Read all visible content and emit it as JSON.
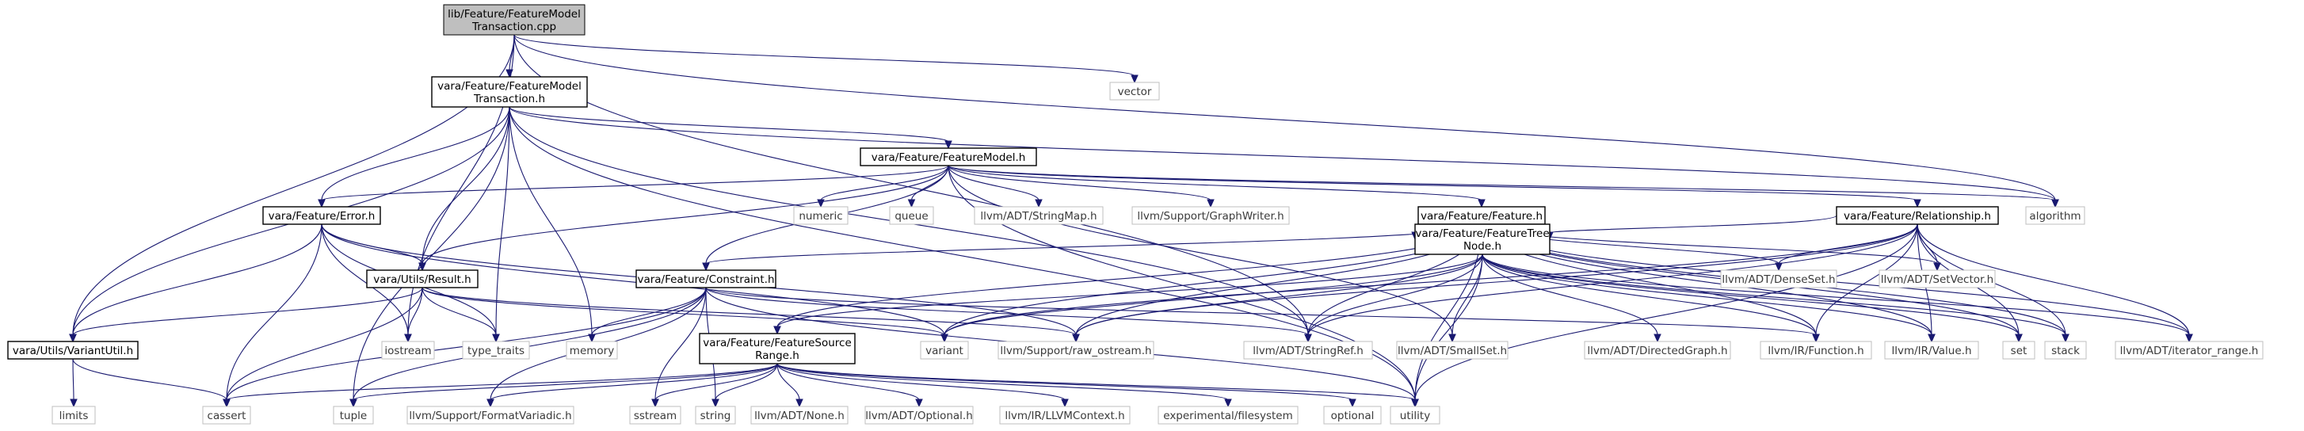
{
  "nodes": [
    {
      "id": "root",
      "lines": [
        "lib/Feature/FeatureModel",
        "Transaction.cpp"
      ],
      "kind": "gray"
    },
    {
      "id": "fmt_h",
      "lines": [
        "vara/Feature/FeatureModel",
        "Transaction.h"
      ],
      "kind": "main"
    },
    {
      "id": "vector",
      "lines": [
        "vector"
      ],
      "kind": "sys"
    },
    {
      "id": "fm_h",
      "lines": [
        "vara/Feature/FeatureModel.h"
      ],
      "kind": "main"
    },
    {
      "id": "error_h",
      "lines": [
        "vara/Feature/Error.h"
      ],
      "kind": "main"
    },
    {
      "id": "numeric",
      "lines": [
        "numeric"
      ],
      "kind": "sys"
    },
    {
      "id": "queue",
      "lines": [
        "queue"
      ],
      "kind": "sys"
    },
    {
      "id": "stringmap",
      "lines": [
        "llvm/ADT/StringMap.h"
      ],
      "kind": "sys"
    },
    {
      "id": "graphwriter",
      "lines": [
        "llvm/Support/GraphWriter.h"
      ],
      "kind": "sys"
    },
    {
      "id": "feature_h",
      "lines": [
        "vara/Feature/Feature.h"
      ],
      "kind": "main"
    },
    {
      "id": "relationship_h",
      "lines": [
        "vara/Feature/Relationship.h"
      ],
      "kind": "main"
    },
    {
      "id": "algorithm",
      "lines": [
        "algorithm"
      ],
      "kind": "sys"
    },
    {
      "id": "result_h",
      "lines": [
        "vara/Utils/Result.h"
      ],
      "kind": "main"
    },
    {
      "id": "constraint_h",
      "lines": [
        "vara/Feature/Constraint.h"
      ],
      "kind": "main"
    },
    {
      "id": "ftn_h",
      "lines": [
        "vara/Feature/FeatureTree",
        "Node.h"
      ],
      "kind": "main"
    },
    {
      "id": "denseset",
      "lines": [
        "llvm/ADT/DenseSet.h"
      ],
      "kind": "sys"
    },
    {
      "id": "setvector",
      "lines": [
        "llvm/ADT/SetVector.h"
      ],
      "kind": "sys"
    },
    {
      "id": "variantutil_h",
      "lines": [
        "vara/Utils/VariantUtil.h"
      ],
      "kind": "main"
    },
    {
      "id": "iostream",
      "lines": [
        "iostream"
      ],
      "kind": "sys"
    },
    {
      "id": "type_traits",
      "lines": [
        "type_traits"
      ],
      "kind": "sys"
    },
    {
      "id": "memory",
      "lines": [
        "memory"
      ],
      "kind": "sys"
    },
    {
      "id": "variant",
      "lines": [
        "variant"
      ],
      "kind": "sys"
    },
    {
      "id": "raw_ostream",
      "lines": [
        "llvm/Support/raw_ostream.h"
      ],
      "kind": "sys"
    },
    {
      "id": "stringref",
      "lines": [
        "llvm/ADT/StringRef.h"
      ],
      "kind": "sys"
    },
    {
      "id": "smallset",
      "lines": [
        "llvm/ADT/SmallSet.h"
      ],
      "kind": "sys"
    },
    {
      "id": "directedgraph",
      "lines": [
        "llvm/ADT/DirectedGraph.h"
      ],
      "kind": "sys"
    },
    {
      "id": "irfunction",
      "lines": [
        "llvm/IR/Function.h"
      ],
      "kind": "sys"
    },
    {
      "id": "irvalue",
      "lines": [
        "llvm/IR/Value.h"
      ],
      "kind": "sys"
    },
    {
      "id": "set",
      "lines": [
        "set"
      ],
      "kind": "sys"
    },
    {
      "id": "stack",
      "lines": [
        "stack"
      ],
      "kind": "sys"
    },
    {
      "id": "iterator_range",
      "lines": [
        "llvm/ADT/iterator_range.h"
      ],
      "kind": "sys"
    },
    {
      "id": "fsr_h",
      "lines": [
        "vara/Feature/FeatureSource",
        "Range.h"
      ],
      "kind": "main"
    },
    {
      "id": "limits",
      "lines": [
        "limits"
      ],
      "kind": "sys"
    },
    {
      "id": "cassert",
      "lines": [
        "cassert"
      ],
      "kind": "sys"
    },
    {
      "id": "tuple",
      "lines": [
        "tuple"
      ],
      "kind": "sys"
    },
    {
      "id": "formatvariadic",
      "lines": [
        "llvm/Support/FormatVariadic.h"
      ],
      "kind": "sys"
    },
    {
      "id": "sstream",
      "lines": [
        "sstream"
      ],
      "kind": "sys"
    },
    {
      "id": "string",
      "lines": [
        "string"
      ],
      "kind": "sys"
    },
    {
      "id": "none",
      "lines": [
        "llvm/ADT/None.h"
      ],
      "kind": "sys"
    },
    {
      "id": "optional_h",
      "lines": [
        "llvm/ADT/Optional.h"
      ],
      "kind": "sys"
    },
    {
      "id": "llvmcontext",
      "lines": [
        "llvm/IR/LLVMContext.h"
      ],
      "kind": "sys"
    },
    {
      "id": "filesystem",
      "lines": [
        "experimental/filesystem"
      ],
      "kind": "sys"
    },
    {
      "id": "optional",
      "lines": [
        "optional"
      ],
      "kind": "sys"
    },
    {
      "id": "utility",
      "lines": [
        "utility"
      ],
      "kind": "sys"
    }
  ],
  "edges": [
    [
      "root",
      "fmt_h"
    ],
    [
      "root",
      "vector"
    ],
    [
      "root",
      "algorithm"
    ],
    [
      "root",
      "variantutil_h"
    ],
    [
      "root",
      "iostream"
    ],
    [
      "root",
      "stringref"
    ],
    [
      "fmt_h",
      "fm_h"
    ],
    [
      "fmt_h",
      "error_h"
    ],
    [
      "fmt_h",
      "result_h"
    ],
    [
      "fmt_h",
      "variantutil_h"
    ],
    [
      "fmt_h",
      "memory"
    ],
    [
      "fmt_h",
      "type_traits"
    ],
    [
      "fmt_h",
      "tuple"
    ],
    [
      "fmt_h",
      "algorithm"
    ],
    [
      "fmt_h",
      "utility"
    ],
    [
      "fmt_h",
      "stringref"
    ],
    [
      "fm_h",
      "error_h"
    ],
    [
      "fm_h",
      "numeric"
    ],
    [
      "fm_h",
      "queue"
    ],
    [
      "fm_h",
      "stringmap"
    ],
    [
      "fm_h",
      "graphwriter"
    ],
    [
      "fm_h",
      "feature_h"
    ],
    [
      "fm_h",
      "relationship_h"
    ],
    [
      "fm_h",
      "algorithm"
    ],
    [
      "fm_h",
      "result_h"
    ],
    [
      "fm_h",
      "constraint_h"
    ],
    [
      "fm_h",
      "utility"
    ],
    [
      "fm_h",
      "smallset"
    ],
    [
      "error_h",
      "result_h"
    ],
    [
      "error_h",
      "variantutil_h"
    ],
    [
      "error_h",
      "iostream"
    ],
    [
      "error_h",
      "type_traits"
    ],
    [
      "error_h",
      "cassert"
    ],
    [
      "error_h",
      "variant"
    ],
    [
      "error_h",
      "raw_ostream"
    ],
    [
      "feature_h",
      "constraint_h"
    ],
    [
      "feature_h",
      "ftn_h"
    ],
    [
      "feature_h",
      "fsr_h"
    ],
    [
      "feature_h",
      "variant"
    ],
    [
      "feature_h",
      "raw_ostream"
    ],
    [
      "feature_h",
      "stringref"
    ],
    [
      "feature_h",
      "denseset"
    ],
    [
      "feature_h",
      "setvector"
    ],
    [
      "feature_h",
      "irfunction"
    ],
    [
      "feature_h",
      "irvalue"
    ],
    [
      "feature_h",
      "set"
    ],
    [
      "feature_h",
      "stack"
    ],
    [
      "feature_h",
      "iterator_range"
    ],
    [
      "feature_h",
      "utility"
    ],
    [
      "relationship_h",
      "ftn_h"
    ],
    [
      "relationship_h",
      "denseset"
    ],
    [
      "relationship_h",
      "setvector"
    ],
    [
      "relationship_h",
      "variant"
    ],
    [
      "relationship_h",
      "raw_ostream"
    ],
    [
      "relationship_h",
      "stringref"
    ],
    [
      "relationship_h",
      "irfunction"
    ],
    [
      "relationship_h",
      "irvalue"
    ],
    [
      "relationship_h",
      "set"
    ],
    [
      "relationship_h",
      "stack"
    ],
    [
      "relationship_h",
      "iterator_range"
    ],
    [
      "relationship_h",
      "utility"
    ],
    [
      "result_h",
      "variantutil_h"
    ],
    [
      "result_h",
      "iostream"
    ],
    [
      "result_h",
      "type_traits"
    ],
    [
      "result_h",
      "cassert"
    ],
    [
      "result_h",
      "variant"
    ],
    [
      "result_h",
      "raw_ostream"
    ],
    [
      "constraint_h",
      "memory"
    ],
    [
      "constraint_h",
      "cassert"
    ],
    [
      "constraint_h",
      "tuple"
    ],
    [
      "constraint_h",
      "formatvariadic"
    ],
    [
      "constraint_h",
      "sstream"
    ],
    [
      "constraint_h",
      "string"
    ],
    [
      "constraint_h",
      "utility"
    ],
    [
      "constraint_h",
      "stringref"
    ],
    [
      "constraint_h",
      "irfunction"
    ],
    [
      "ftn_h",
      "fsr_h"
    ],
    [
      "ftn_h",
      "variant"
    ],
    [
      "ftn_h",
      "raw_ostream"
    ],
    [
      "ftn_h",
      "stringref"
    ],
    [
      "ftn_h",
      "smallset"
    ],
    [
      "ftn_h",
      "directedgraph"
    ],
    [
      "ftn_h",
      "irfunction"
    ],
    [
      "ftn_h",
      "irvalue"
    ],
    [
      "ftn_h",
      "set"
    ],
    [
      "ftn_h",
      "stack"
    ],
    [
      "ftn_h",
      "iterator_range"
    ],
    [
      "ftn_h",
      "utility"
    ],
    [
      "variantutil_h",
      "limits"
    ],
    [
      "variantutil_h",
      "cassert"
    ],
    [
      "fsr_h",
      "cassert"
    ],
    [
      "fsr_h",
      "tuple"
    ],
    [
      "fsr_h",
      "formatvariadic"
    ],
    [
      "fsr_h",
      "sstream"
    ],
    [
      "fsr_h",
      "string"
    ],
    [
      "fsr_h",
      "none"
    ],
    [
      "fsr_h",
      "optional_h"
    ],
    [
      "fsr_h",
      "llvmcontext"
    ],
    [
      "fsr_h",
      "filesystem"
    ],
    [
      "fsr_h",
      "optional"
    ],
    [
      "fsr_h",
      "utility"
    ]
  ]
}
